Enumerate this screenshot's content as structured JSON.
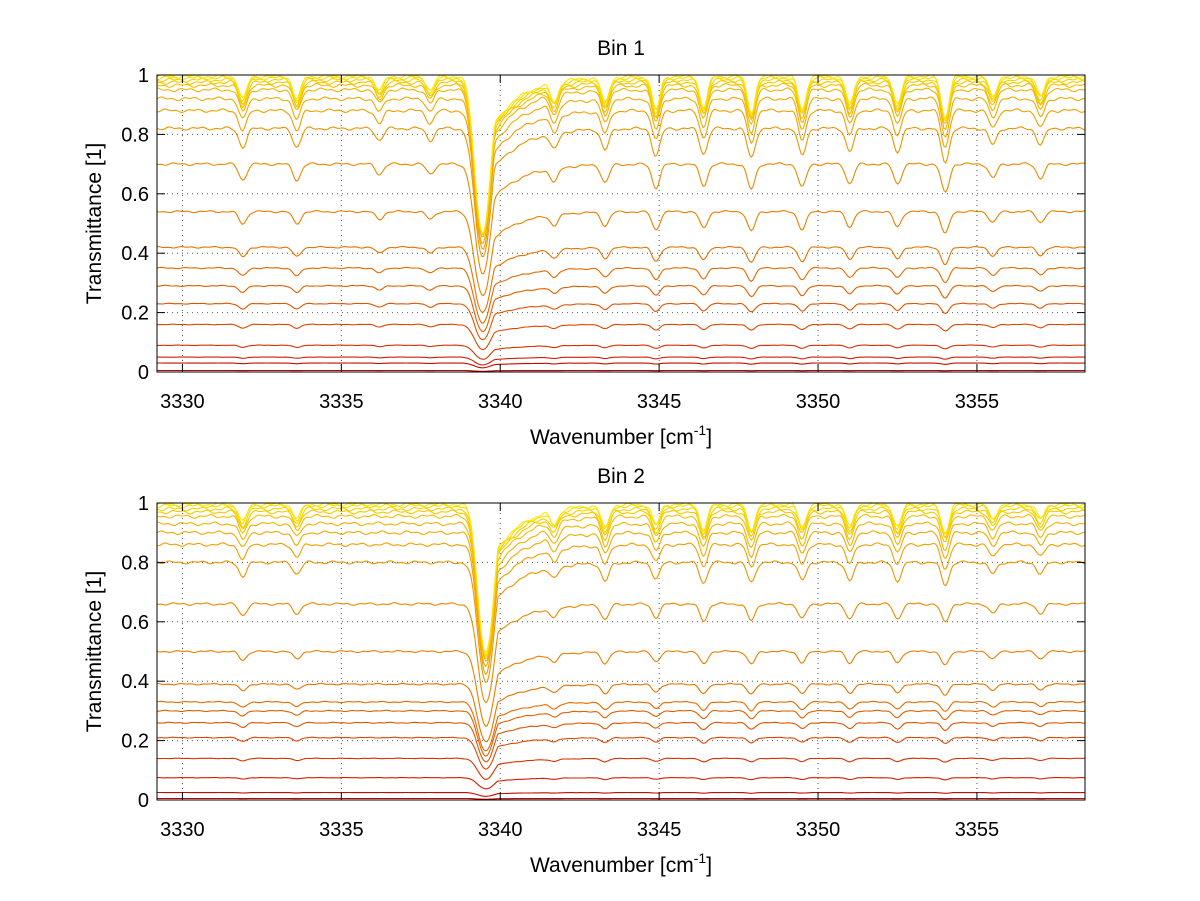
{
  "chart_data": [
    {
      "type": "line",
      "title": "Bin 1",
      "xlabel": "Wavenumber [cm",
      "xlabel_sup": "-1",
      "xlabel_end": "]",
      "ylabel": "Transmittance [1]",
      "xlim": [
        3329.2,
        3358.4
      ],
      "ylim": [
        0,
        1
      ],
      "xticks": [
        3330,
        3335,
        3340,
        3345,
        3350,
        3355
      ],
      "xticklabels": [
        "3330",
        "3335",
        "3340",
        "3345",
        "3350",
        "3355"
      ],
      "yticks": [
        0,
        0.2,
        0.4,
        0.6,
        0.8,
        1
      ],
      "yticklabels": [
        "0",
        "0.2",
        "0.4",
        "0.6",
        "0.8",
        "1"
      ],
      "grid": true,
      "colors": [
        "#c00000",
        "#c80a00",
        "#d02000",
        "#d43200",
        "#dc4800",
        "#e05400",
        "#e06000",
        "#e46a00",
        "#e47400",
        "#e88000",
        "#ea8a00",
        "#ec9400",
        "#eea000",
        "#f0aa00",
        "#f2b400",
        "#f4be00",
        "#f6c800",
        "#f8d200",
        "#fadc00",
        "#fce600"
      ],
      "baselines": [
        0.005,
        0.03,
        0.05,
        0.09,
        0.16,
        0.23,
        0.29,
        0.35,
        0.42,
        0.54,
        0.7,
        0.82,
        0.88,
        0.92,
        0.95,
        0.965,
        0.975,
        0.983,
        0.99,
        0.995
      ],
      "lines": [
        {
          "center": 3339.45,
          "depth": 0.75,
          "width": 0.22,
          "tail": 0.9
        },
        {
          "center": 3331.9,
          "depth": 0.08,
          "width": 0.12
        },
        {
          "center": 3333.6,
          "depth": 0.08,
          "width": 0.12
        },
        {
          "center": 3336.2,
          "depth": 0.05,
          "width": 0.12
        },
        {
          "center": 3337.8,
          "depth": 0.05,
          "width": 0.12
        },
        {
          "center": 3341.7,
          "depth": 0.07,
          "width": 0.12
        },
        {
          "center": 3343.3,
          "depth": 0.09,
          "width": 0.12
        },
        {
          "center": 3344.9,
          "depth": 0.12,
          "width": 0.12
        },
        {
          "center": 3346.4,
          "depth": 0.11,
          "width": 0.12
        },
        {
          "center": 3347.9,
          "depth": 0.13,
          "width": 0.12
        },
        {
          "center": 3349.5,
          "depth": 0.12,
          "width": 0.12
        },
        {
          "center": 3351.0,
          "depth": 0.1,
          "width": 0.12
        },
        {
          "center": 3352.5,
          "depth": 0.1,
          "width": 0.12
        },
        {
          "center": 3354.0,
          "depth": 0.15,
          "width": 0.12
        },
        {
          "center": 3355.5,
          "depth": 0.07,
          "width": 0.12
        },
        {
          "center": 3357.0,
          "depth": 0.07,
          "width": 0.12
        }
      ]
    },
    {
      "type": "line",
      "title": "Bin 2",
      "xlabel": "Wavenumber [cm",
      "xlabel_sup": "-1",
      "xlabel_end": "]",
      "ylabel": "Transmittance [1]",
      "xlim": [
        3329.2,
        3358.4
      ],
      "ylim": [
        0,
        1
      ],
      "xticks": [
        3330,
        3335,
        3340,
        3345,
        3350,
        3355
      ],
      "xticklabels": [
        "3330",
        "3335",
        "3340",
        "3345",
        "3350",
        "3355"
      ],
      "yticks": [
        0,
        0.2,
        0.4,
        0.6,
        0.8,
        1
      ],
      "yticklabels": [
        "0",
        "0.2",
        "0.4",
        "0.6",
        "0.8",
        "1"
      ],
      "grid": true,
      "colors": [
        "#c00000",
        "#c80a00",
        "#d02000",
        "#d43200",
        "#dc4800",
        "#e05400",
        "#e06000",
        "#e46a00",
        "#e47400",
        "#e88000",
        "#ea8a00",
        "#ec9400",
        "#eea000",
        "#f0aa00",
        "#f2b400",
        "#f4be00",
        "#f6c800",
        "#f8d200",
        "#fadc00",
        "#fce600"
      ],
      "baselines": [
        0.005,
        0.025,
        0.075,
        0.14,
        0.21,
        0.26,
        0.3,
        0.33,
        0.39,
        0.5,
        0.66,
        0.8,
        0.86,
        0.9,
        0.93,
        0.955,
        0.97,
        0.98,
        0.99,
        0.995
      ],
      "lines": [
        {
          "center": 3339.55,
          "depth": 0.7,
          "width": 0.22,
          "tail": 0.9
        },
        {
          "center": 3331.9,
          "depth": 0.06,
          "width": 0.12
        },
        {
          "center": 3333.6,
          "depth": 0.05,
          "width": 0.12
        },
        {
          "center": 3341.7,
          "depth": 0.05,
          "width": 0.12
        },
        {
          "center": 3343.3,
          "depth": 0.08,
          "width": 0.12
        },
        {
          "center": 3344.9,
          "depth": 0.07,
          "width": 0.12
        },
        {
          "center": 3346.4,
          "depth": 0.09,
          "width": 0.12
        },
        {
          "center": 3347.9,
          "depth": 0.09,
          "width": 0.12
        },
        {
          "center": 3349.5,
          "depth": 0.08,
          "width": 0.12
        },
        {
          "center": 3351.0,
          "depth": 0.08,
          "width": 0.12
        },
        {
          "center": 3352.5,
          "depth": 0.08,
          "width": 0.12
        },
        {
          "center": 3354.0,
          "depth": 0.1,
          "width": 0.12
        },
        {
          "center": 3355.5,
          "depth": 0.05,
          "width": 0.12
        },
        {
          "center": 3357.0,
          "depth": 0.05,
          "width": 0.12
        }
      ]
    }
  ]
}
